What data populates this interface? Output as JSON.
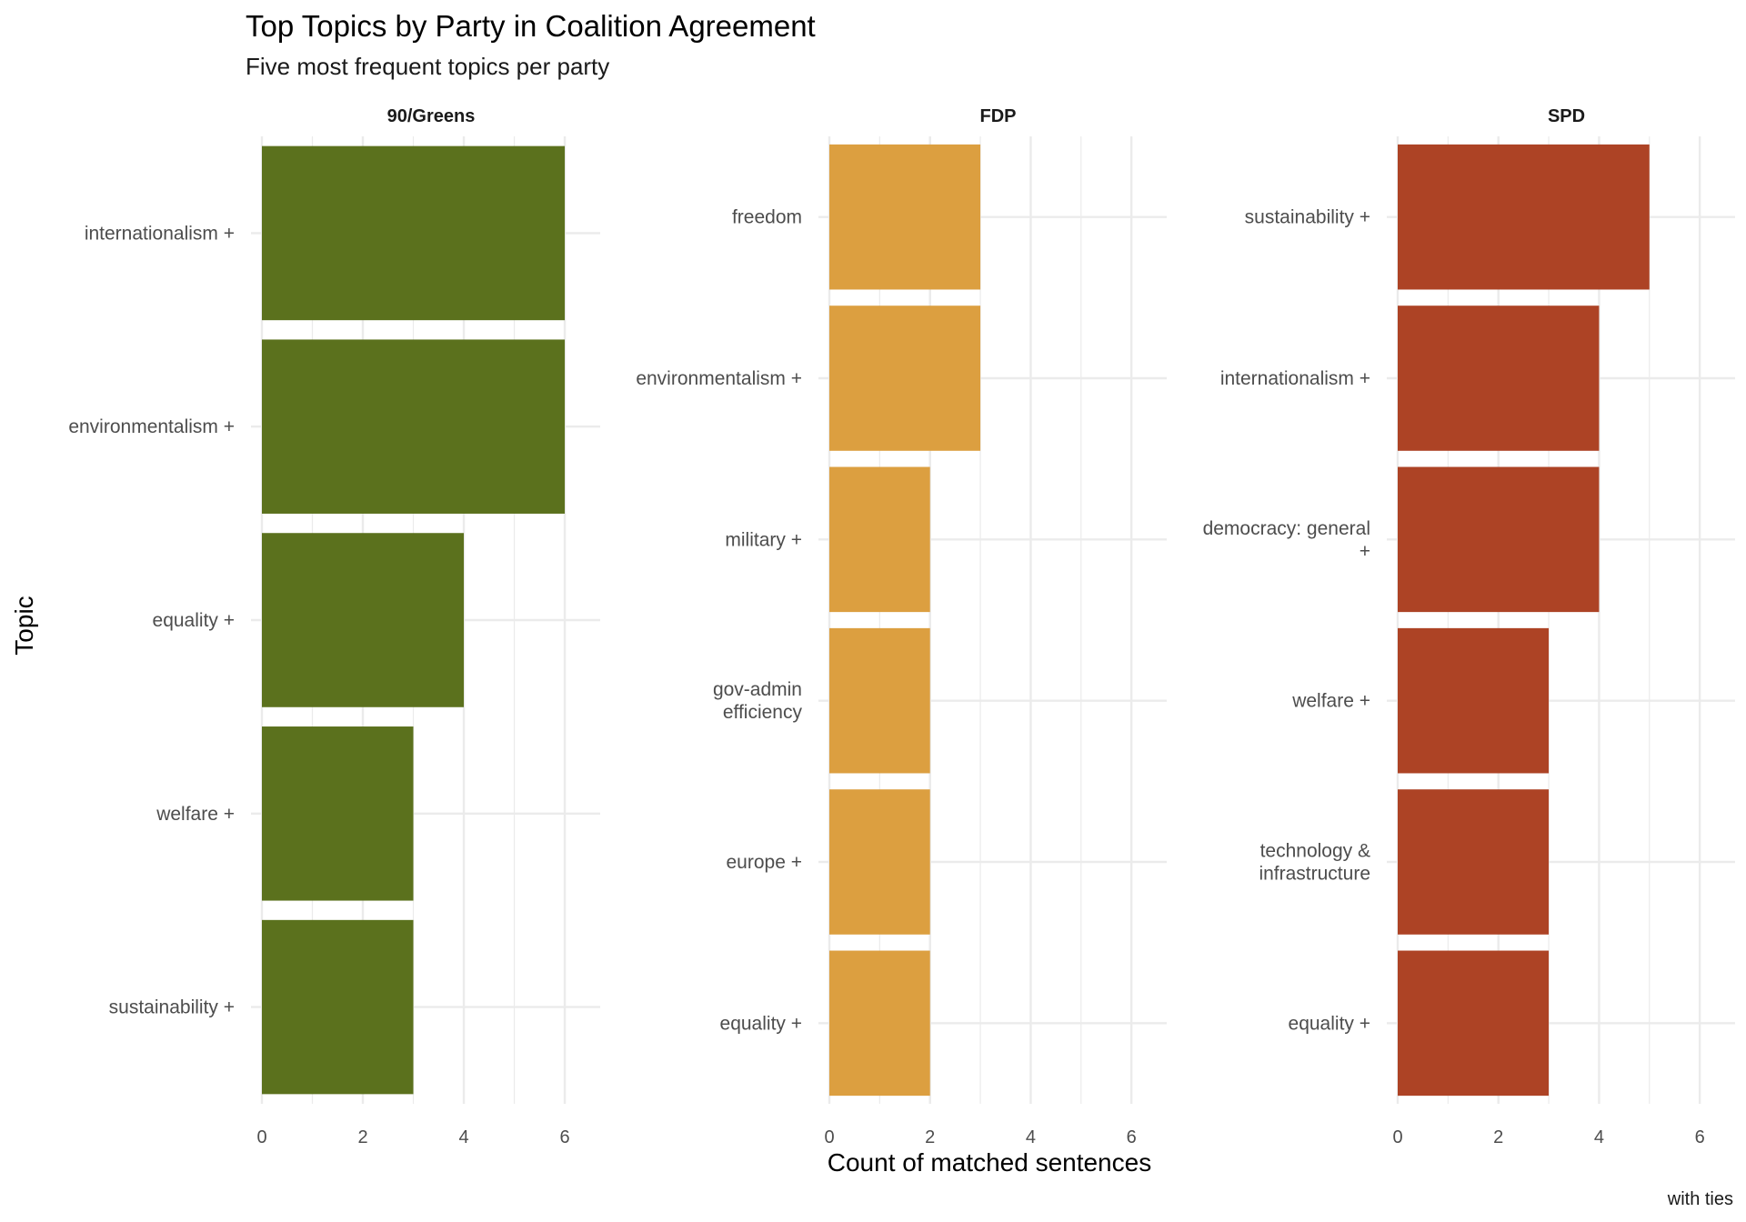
{
  "chart_data": {
    "type": "bar",
    "orientation": "horizontal",
    "title": "Top Topics by Party in Coalition Agreement",
    "subtitle": "Five most frequent topics per party",
    "xlabel": "Count of matched sentences",
    "ylabel": "Topic",
    "caption": "with ties",
    "xlim": [
      0,
      6.3
    ],
    "xticks": [
      0,
      2,
      4,
      6
    ],
    "grid": true,
    "legend": "none",
    "panels": [
      {
        "name": "90/Greens",
        "color": "#5b711d",
        "categories": [
          "internationalism +",
          "environmentalism +",
          "equality +",
          "welfare +",
          "sustainability +"
        ],
        "values": [
          6,
          6,
          4,
          3,
          3
        ]
      },
      {
        "name": "FDP",
        "color": "#dc9f40",
        "categories": [
          "freedom",
          "environmentalism +",
          "military +",
          "gov-admin\nefficiency",
          "europe +",
          "equality +"
        ],
        "values": [
          3,
          3,
          2,
          2,
          2,
          2
        ]
      },
      {
        "name": "SPD",
        "color": "#ad4325",
        "categories": [
          "sustainability +",
          "internationalism +",
          "democracy: general\n+",
          "welfare +",
          "technology &\ninfrastructure",
          "equality +"
        ],
        "values": [
          5,
          4,
          4,
          3,
          3,
          3
        ]
      }
    ]
  }
}
